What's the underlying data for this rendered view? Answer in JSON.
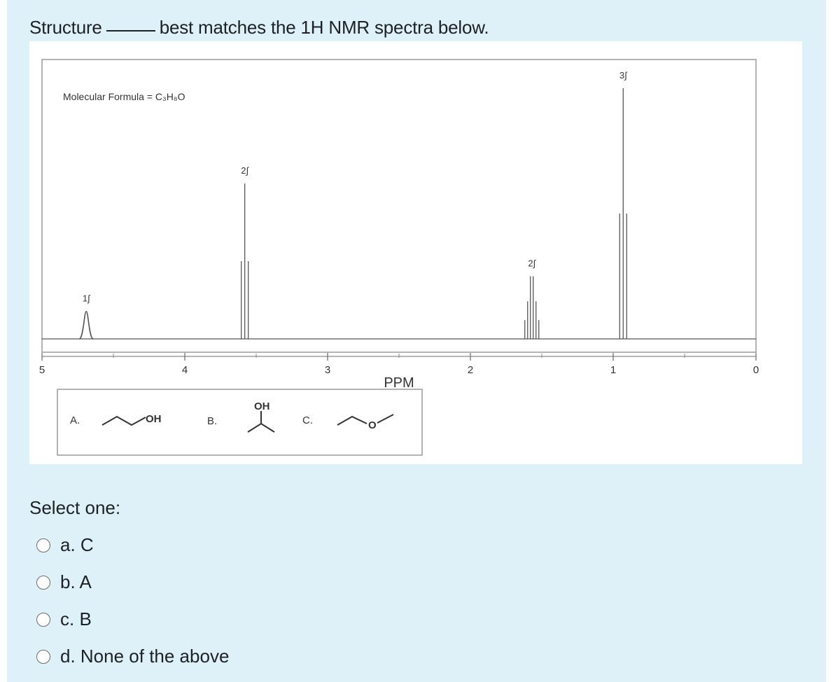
{
  "question": {
    "text_before": "Structure",
    "text_after": "best matches the 1H NMR spectra below."
  },
  "figure": {
    "formula_label": "Molecular Formula = C₃H₈O",
    "xlabel": "PPM",
    "ticks": [
      "5",
      "4",
      "3",
      "2",
      "1",
      "0"
    ],
    "peaks": [
      {
        "ppm": 4.69,
        "integration": "1∫",
        "shape": "singlet",
        "height": 0.11
      },
      {
        "ppm": 3.58,
        "integration": "2∫",
        "shape": "triplet",
        "height": 0.62
      },
      {
        "ppm": 1.57,
        "integration": "2∫",
        "shape": "sextet",
        "height": 0.25
      },
      {
        "ppm": 0.93,
        "integration": "3∫",
        "shape": "triplet",
        "height": 1.0
      }
    ],
    "structures": {
      "A": {
        "label": "A.",
        "group": "OH"
      },
      "B": {
        "label": "B.",
        "group": "OH"
      },
      "C": {
        "label": "C.",
        "group": "O"
      }
    }
  },
  "prompt": "Select one:",
  "options": [
    {
      "label": "a. C"
    },
    {
      "label": "b. A"
    },
    {
      "label": "c. B"
    },
    {
      "label": "d. None of the above"
    }
  ]
}
